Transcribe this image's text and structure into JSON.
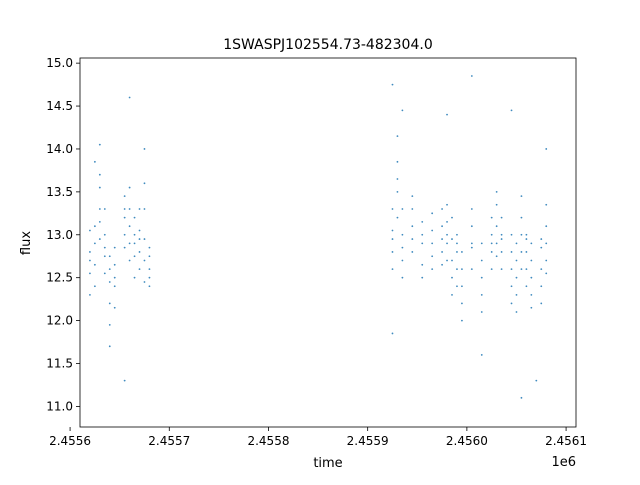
{
  "chart_data": {
    "type": "scatter",
    "title": "1SWASPJ102554.73-482304.0",
    "xlabel": "time",
    "ylabel": "flux",
    "x_offset_label": "1e6",
    "xlim": [
      2.45561,
      2.45611
    ],
    "ylim": [
      10.76,
      15.06
    ],
    "x_ticks": [
      2.4556,
      2.4557,
      2.4558,
      2.4559,
      2.456,
      2.4561
    ],
    "x_tick_labels": [
      "2.4556",
      "2.4557",
      "2.4558",
      "2.4559",
      "2.4560",
      "2.4561"
    ],
    "y_ticks": [
      11.0,
      11.5,
      12.0,
      12.5,
      13.0,
      13.5,
      14.0,
      14.5,
      15.0
    ],
    "y_tick_labels": [
      "11.0",
      "11.5",
      "12.0",
      "12.5",
      "13.0",
      "13.5",
      "14.0",
      "14.5",
      "15.0"
    ],
    "grid": false,
    "marker_color": "#1f77b4",
    "series": [
      {
        "points": [
          [
            2.45562,
            12.55
          ],
          [
            2.45562,
            12.8
          ],
          [
            2.45562,
            13.05
          ],
          [
            2.45562,
            12.3
          ],
          [
            2.45562,
            12.7
          ],
          [
            2.455625,
            13.1
          ],
          [
            2.455625,
            12.65
          ],
          [
            2.455625,
            12.4
          ],
          [
            2.455625,
            12.9
          ],
          [
            2.455625,
            13.85
          ],
          [
            2.45563,
            13.55
          ],
          [
            2.45563,
            13.3
          ],
          [
            2.45563,
            12.95
          ],
          [
            2.45563,
            13.7
          ],
          [
            2.45563,
            13.15
          ],
          [
            2.455635,
            13.0
          ],
          [
            2.455635,
            12.75
          ],
          [
            2.455635,
            12.85
          ],
          [
            2.455635,
            13.3
          ],
          [
            2.455635,
            12.55
          ],
          [
            2.45564,
            12.6
          ],
          [
            2.45564,
            12.45
          ],
          [
            2.45564,
            12.2
          ],
          [
            2.45564,
            12.75
          ],
          [
            2.45564,
            11.95
          ],
          [
            2.455645,
            12.4
          ],
          [
            2.455645,
            12.65
          ],
          [
            2.455645,
            12.5
          ],
          [
            2.455645,
            12.85
          ],
          [
            2.455645,
            12.15
          ],
          [
            2.455655,
            13.3
          ],
          [
            2.455655,
            13.0
          ],
          [
            2.455655,
            13.45
          ],
          [
            2.455655,
            12.85
          ],
          [
            2.455655,
            13.2
          ],
          [
            2.45566,
            13.1
          ],
          [
            2.45566,
            12.9
          ],
          [
            2.45566,
            13.3
          ],
          [
            2.45566,
            13.55
          ],
          [
            2.45566,
            12.7
          ],
          [
            2.455665,
            12.75
          ],
          [
            2.455665,
            13.0
          ],
          [
            2.455665,
            12.5
          ],
          [
            2.455665,
            12.9
          ],
          [
            2.455665,
            13.2
          ],
          [
            2.45567,
            13.05
          ],
          [
            2.45567,
            12.8
          ],
          [
            2.45567,
            13.3
          ],
          [
            2.45567,
            12.6
          ],
          [
            2.45567,
            12.95
          ],
          [
            2.455675,
            12.95
          ],
          [
            2.455675,
            13.3
          ],
          [
            2.455675,
            12.7
          ],
          [
            2.455675,
            13.6
          ],
          [
            2.455675,
            12.45
          ],
          [
            2.45568,
            12.6
          ],
          [
            2.45568,
            12.75
          ],
          [
            2.45568,
            12.5
          ],
          [
            2.45568,
            12.85
          ],
          [
            2.45568,
            12.4
          ],
          [
            2.45563,
            14.05
          ],
          [
            2.45564,
            11.7
          ],
          [
            2.45566,
            14.6
          ],
          [
            2.455675,
            14.0
          ],
          [
            2.455655,
            11.3
          ],
          [
            2.455925,
            12.8
          ],
          [
            2.455925,
            13.05
          ],
          [
            2.455925,
            12.6
          ],
          [
            2.455925,
            13.3
          ],
          [
            2.455925,
            12.95
          ],
          [
            2.45593,
            13.85
          ],
          [
            2.45593,
            13.5
          ],
          [
            2.45593,
            14.15
          ],
          [
            2.45593,
            13.2
          ],
          [
            2.45593,
            13.65
          ],
          [
            2.455935,
            13.0
          ],
          [
            2.455935,
            12.7
          ],
          [
            2.455935,
            13.3
          ],
          [
            2.455935,
            12.5
          ],
          [
            2.455935,
            12.85
          ],
          [
            2.455945,
            13.1
          ],
          [
            2.455945,
            12.8
          ],
          [
            2.455945,
            13.3
          ],
          [
            2.455945,
            12.95
          ],
          [
            2.455945,
            13.45
          ],
          [
            2.455955,
            12.9
          ],
          [
            2.455955,
            13.15
          ],
          [
            2.455955,
            12.65
          ],
          [
            2.455955,
            12.5
          ],
          [
            2.455955,
            13.0
          ],
          [
            2.455965,
            13.05
          ],
          [
            2.455965,
            12.9
          ],
          [
            2.455965,
            12.75
          ],
          [
            2.455965,
            13.25
          ],
          [
            2.455965,
            12.6
          ],
          [
            2.455975,
            13.1
          ],
          [
            2.455975,
            12.95
          ],
          [
            2.455975,
            13.3
          ],
          [
            2.455975,
            12.8
          ],
          [
            2.455975,
            12.65
          ],
          [
            2.45598,
            12.9
          ],
          [
            2.45598,
            13.15
          ],
          [
            2.45598,
            12.7
          ],
          [
            2.45598,
            13.0
          ],
          [
            2.45598,
            13.35
          ],
          [
            2.455985,
            12.7
          ],
          [
            2.455985,
            12.5
          ],
          [
            2.455985,
            12.95
          ],
          [
            2.455985,
            12.3
          ],
          [
            2.455985,
            13.2
          ],
          [
            2.45599,
            12.8
          ],
          [
            2.45599,
            12.6
          ],
          [
            2.45599,
            13.0
          ],
          [
            2.45599,
            12.4
          ],
          [
            2.45599,
            12.9
          ],
          [
            2.455995,
            12.4
          ],
          [
            2.455995,
            12.2
          ],
          [
            2.455995,
            12.6
          ],
          [
            2.455995,
            12.0
          ],
          [
            2.455995,
            12.8
          ],
          [
            2.456005,
            13.1
          ],
          [
            2.456005,
            12.85
          ],
          [
            2.456005,
            13.3
          ],
          [
            2.456005,
            12.6
          ],
          [
            2.456005,
            12.9
          ],
          [
            2.456015,
            12.7
          ],
          [
            2.456015,
            12.3
          ],
          [
            2.456015,
            12.5
          ],
          [
            2.456015,
            12.1
          ],
          [
            2.456015,
            12.9
          ],
          [
            2.456025,
            12.9
          ],
          [
            2.456025,
            13.2
          ],
          [
            2.456025,
            12.8
          ],
          [
            2.456025,
            13.0
          ],
          [
            2.456025,
            12.6
          ],
          [
            2.45603,
            13.1
          ],
          [
            2.45603,
            13.35
          ],
          [
            2.45603,
            12.9
          ],
          [
            2.45603,
            13.5
          ],
          [
            2.45603,
            12.75
          ],
          [
            2.456035,
            13.0
          ],
          [
            2.456035,
            12.8
          ],
          [
            2.456035,
            13.2
          ],
          [
            2.456035,
            12.6
          ],
          [
            2.456035,
            12.95
          ],
          [
            2.456045,
            12.6
          ],
          [
            2.456045,
            12.4
          ],
          [
            2.456045,
            12.8
          ],
          [
            2.456045,
            12.2
          ],
          [
            2.456045,
            13.0
          ],
          [
            2.45605,
            12.5
          ],
          [
            2.45605,
            12.3
          ],
          [
            2.45605,
            12.7
          ],
          [
            2.45605,
            12.1
          ],
          [
            2.45605,
            12.9
          ],
          [
            2.456055,
            13.0
          ],
          [
            2.456055,
            12.8
          ],
          [
            2.456055,
            13.2
          ],
          [
            2.456055,
            12.6
          ],
          [
            2.456055,
            13.45
          ],
          [
            2.45606,
            12.8
          ],
          [
            2.45606,
            12.6
          ],
          [
            2.45606,
            13.0
          ],
          [
            2.45606,
            12.4
          ],
          [
            2.45606,
            12.95
          ],
          [
            2.456065,
            12.7
          ],
          [
            2.456065,
            12.5
          ],
          [
            2.456065,
            12.9
          ],
          [
            2.456065,
            12.3
          ],
          [
            2.456065,
            12.15
          ],
          [
            2.456075,
            12.6
          ],
          [
            2.456075,
            12.4
          ],
          [
            2.456075,
            12.85
          ],
          [
            2.456075,
            12.2
          ],
          [
            2.456075,
            12.95
          ],
          [
            2.45608,
            12.9
          ],
          [
            2.45608,
            13.1
          ],
          [
            2.45608,
            12.7
          ],
          [
            2.45608,
            13.35
          ],
          [
            2.45608,
            12.55
          ],
          [
            2.455925,
            14.75
          ],
          [
            2.455935,
            14.45
          ],
          [
            2.455925,
            11.85
          ],
          [
            2.456005,
            14.85
          ],
          [
            2.456045,
            14.45
          ],
          [
            2.45608,
            14.0
          ],
          [
            2.456055,
            11.1
          ],
          [
            2.456015,
            11.6
          ],
          [
            2.45598,
            14.4
          ],
          [
            2.45607,
            11.3
          ]
        ]
      }
    ]
  }
}
